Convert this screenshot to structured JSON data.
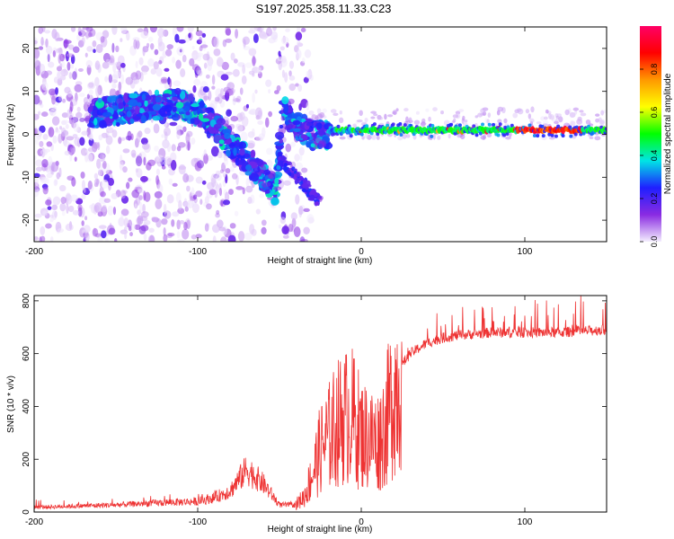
{
  "figure": {
    "title": "S197.2025.358.11.33.C23"
  },
  "chart_data": [
    {
      "type": "heatmap",
      "name": "spectrogram",
      "xlabel": "Height of straight line (km)",
      "ylabel": "Frequency (Hz)",
      "xlim": [
        -200,
        150
      ],
      "ylim": [
        -25,
        25
      ],
      "xticks": [
        -200,
        -100,
        0,
        100
      ],
      "yticks": [
        -20,
        -10,
        0,
        10,
        20
      ],
      "colorbar": {
        "label": "Normalized spectral amplitude",
        "range": [
          0,
          1
        ],
        "ticks": [
          "0.0",
          "0.2",
          "0.4",
          "0.6",
          "0.8"
        ],
        "colors": [
          "#f4eefe",
          "#8a2be2",
          "#1f1fff",
          "#00e5e5",
          "#00ff00",
          "#ffff00",
          "#ff9900",
          "#ff0000",
          "#ff0066"
        ]
      },
      "description_series": [
        {
          "name": "ridge_center_hz",
          "x": [
            -160,
            -140,
            -120,
            -110,
            -100,
            -90,
            -80,
            -70,
            -60,
            -52,
            -48,
            -44,
            -40,
            -30,
            -20,
            -10,
            0,
            20,
            50,
            100,
            150
          ],
          "y": [
            5,
            6,
            7,
            7,
            5,
            2,
            -2,
            -6,
            -10,
            -13,
            6,
            4,
            2,
            0,
            0,
            1,
            2,
            1,
            1,
            1,
            2
          ]
        }
      ],
      "main_band": {
        "x_start": -20,
        "x_end": 150,
        "frequency_hz": 1,
        "peak_amplitude": 0.95,
        "peak_x_range": [
          95,
          135
        ]
      }
    },
    {
      "type": "line",
      "name": "snr",
      "xlabel": "Height of straight line (km)",
      "ylabel": "SNR (10 * v/v)",
      "xlim": [
        -200,
        150
      ],
      "ylim": [
        0,
        820
      ],
      "xticks": [
        -200,
        -100,
        0,
        100
      ],
      "yticks": [
        0,
        200,
        400,
        600,
        800
      ],
      "color": "#ee3333",
      "envelope": {
        "x": [
          -200,
          -150,
          -120,
          -100,
          -90,
          -80,
          -70,
          -60,
          -50,
          -40,
          -35,
          -30,
          -25,
          -20,
          -15,
          -10,
          -5,
          0,
          5,
          10,
          15,
          20,
          25,
          30,
          40,
          50,
          60,
          80,
          100,
          120,
          150
        ],
        "y": [
          20,
          30,
          40,
          45,
          60,
          90,
          180,
          120,
          30,
          30,
          60,
          150,
          250,
          300,
          350,
          380,
          380,
          310,
          300,
          280,
          350,
          480,
          560,
          600,
          640,
          660,
          670,
          680,
          680,
          680,
          690
        ]
      }
    }
  ]
}
